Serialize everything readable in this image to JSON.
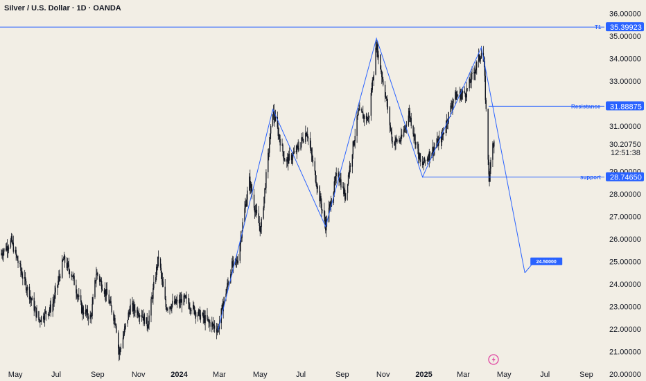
{
  "header": {
    "title": "Silver / U.S. Dollar · 1D · OANDA"
  },
  "chart_data": {
    "type": "candlestick",
    "symbol": "Silver / U.S. Dollar",
    "interval": "1D",
    "source": "OANDA",
    "y_axis_ticks": [
      "36.00000",
      "35.00000",
      "34.00000",
      "33.00000",
      "31.00000",
      "30.20750",
      "29.00000",
      "28.00000",
      "27.00000",
      "26.00000",
      "25.00000",
      "24.00000",
      "23.00000",
      "22.00000",
      "21.00000",
      "20.00000"
    ],
    "x_axis_ticks": [
      {
        "label": "May",
        "date": "2023-05-01"
      },
      {
        "label": "Jul",
        "date": "2023-07-01"
      },
      {
        "label": "Sep",
        "date": "2023-09-01"
      },
      {
        "label": "Nov",
        "date": "2023-11-01"
      },
      {
        "label": "2024",
        "date": "2024-01-01",
        "bold": true
      },
      {
        "label": "Mar",
        "date": "2024-03-01"
      },
      {
        "label": "May",
        "date": "2024-05-01"
      },
      {
        "label": "Jul",
        "date": "2024-07-01"
      },
      {
        "label": "Sep",
        "date": "2024-09-01"
      },
      {
        "label": "Nov",
        "date": "2024-11-01"
      },
      {
        "label": "2025",
        "date": "2025-01-01",
        "bold": true
      },
      {
        "label": "Mar",
        "date": "2025-03-01"
      },
      {
        "label": "May",
        "date": "2025-05-01"
      },
      {
        "label": "Jul",
        "date": "2025-07-01"
      },
      {
        "label": "Sep",
        "date": "2025-09-01"
      }
    ],
    "ylim": [
      19.7,
      36.6
    ],
    "xlim": [
      "2023-04-08",
      "2025-09-28"
    ],
    "current_price": "30.20750",
    "countdown": "12:51:38",
    "price_path": [
      {
        "date": "2023-04-08",
        "price": 25.3
      },
      {
        "date": "2023-04-25",
        "price": 25.9
      },
      {
        "date": "2023-05-10",
        "price": 24.5
      },
      {
        "date": "2023-05-25",
        "price": 23.3
      },
      {
        "date": "2023-06-05",
        "price": 22.4
      },
      {
        "date": "2023-06-25",
        "price": 23.0
      },
      {
        "date": "2023-07-12",
        "price": 25.1
      },
      {
        "date": "2023-07-25",
        "price": 24.4
      },
      {
        "date": "2023-08-08",
        "price": 22.9
      },
      {
        "date": "2023-08-22",
        "price": 22.5
      },
      {
        "date": "2023-08-30",
        "price": 24.5
      },
      {
        "date": "2023-09-15",
        "price": 23.5
      },
      {
        "date": "2023-09-28",
        "price": 22.3
      },
      {
        "date": "2023-10-03",
        "price": 20.9
      },
      {
        "date": "2023-10-20",
        "price": 23.0
      },
      {
        "date": "2023-11-05",
        "price": 22.7
      },
      {
        "date": "2023-11-15",
        "price": 22.2
      },
      {
        "date": "2023-12-01",
        "price": 25.2
      },
      {
        "date": "2023-12-12",
        "price": 23.0
      },
      {
        "date": "2024-01-10",
        "price": 23.3
      },
      {
        "date": "2024-01-25",
        "price": 22.8
      },
      {
        "date": "2024-02-10",
        "price": 22.4
      },
      {
        "date": "2024-02-28",
        "price": 22.0
      },
      {
        "date": "2024-03-08",
        "price": 23.3
      },
      {
        "date": "2024-03-20",
        "price": 24.8
      },
      {
        "date": "2024-03-28",
        "price": 25.0
      },
      {
        "date": "2024-04-08",
        "price": 27.3
      },
      {
        "date": "2024-04-15",
        "price": 28.6
      },
      {
        "date": "2024-04-25",
        "price": 27.1
      },
      {
        "date": "2024-05-02",
        "price": 26.4
      },
      {
        "date": "2024-05-20",
        "price": 31.7
      },
      {
        "date": "2024-06-08",
        "price": 29.4
      },
      {
        "date": "2024-06-22",
        "price": 29.8
      },
      {
        "date": "2024-07-10",
        "price": 30.8
      },
      {
        "date": "2024-07-25",
        "price": 28.4
      },
      {
        "date": "2024-08-07",
        "price": 26.6
      },
      {
        "date": "2024-08-25",
        "price": 29.0
      },
      {
        "date": "2024-09-05",
        "price": 27.9
      },
      {
        "date": "2024-09-25",
        "price": 31.6
      },
      {
        "date": "2024-10-10",
        "price": 31.3
      },
      {
        "date": "2024-10-22",
        "price": 34.6
      },
      {
        "date": "2024-11-05",
        "price": 32.3
      },
      {
        "date": "2024-11-15",
        "price": 30.3
      },
      {
        "date": "2024-11-28",
        "price": 30.4
      },
      {
        "date": "2024-12-10",
        "price": 31.6
      },
      {
        "date": "2024-12-28",
        "price": 29.2
      },
      {
        "date": "2025-01-10",
        "price": 29.8
      },
      {
        "date": "2025-01-28",
        "price": 30.5
      },
      {
        "date": "2025-02-15",
        "price": 32.3
      },
      {
        "date": "2025-03-05",
        "price": 32.5
      },
      {
        "date": "2025-03-18",
        "price": 33.5
      },
      {
        "date": "2025-03-28",
        "price": 34.3
      },
      {
        "date": "2025-04-01",
        "price": 33.7
      },
      {
        "date": "2025-04-07",
        "price": 29.6
      },
      {
        "date": "2025-04-09",
        "price": 28.4
      },
      {
        "date": "2025-04-12",
        "price": 30.4
      },
      {
        "date": "2025-04-16",
        "price": 30.2
      }
    ],
    "pattern_path": [
      {
        "date": "2024-02-28",
        "price": 21.95
      },
      {
        "date": "2024-05-20",
        "price": 31.75
      },
      {
        "date": "2024-08-07",
        "price": 26.55
      },
      {
        "date": "2024-10-22",
        "price": 34.9
      },
      {
        "date": "2024-12-30",
        "price": 28.75
      },
      {
        "date": "2025-03-28",
        "price": 34.5
      },
      {
        "date": "2025-06-01",
        "price": 24.5
      }
    ],
    "levels": [
      {
        "label": "T1",
        "value": "35.39923",
        "price": 35.39923
      },
      {
        "label": "Resistance",
        "value": "31.88875",
        "price": 31.88875
      },
      {
        "label": "support",
        "value": "28.74650",
        "price": 28.7465
      }
    ],
    "target": {
      "label": "24.50000",
      "price": 24.5,
      "date": "2025-06-01"
    }
  },
  "colors": {
    "background": "#f2eee5",
    "candle": "#131722",
    "line": "#2962ff",
    "tag": "#2962ff",
    "text": "#131722"
  },
  "icons": {
    "logo": "lightning-icon"
  }
}
